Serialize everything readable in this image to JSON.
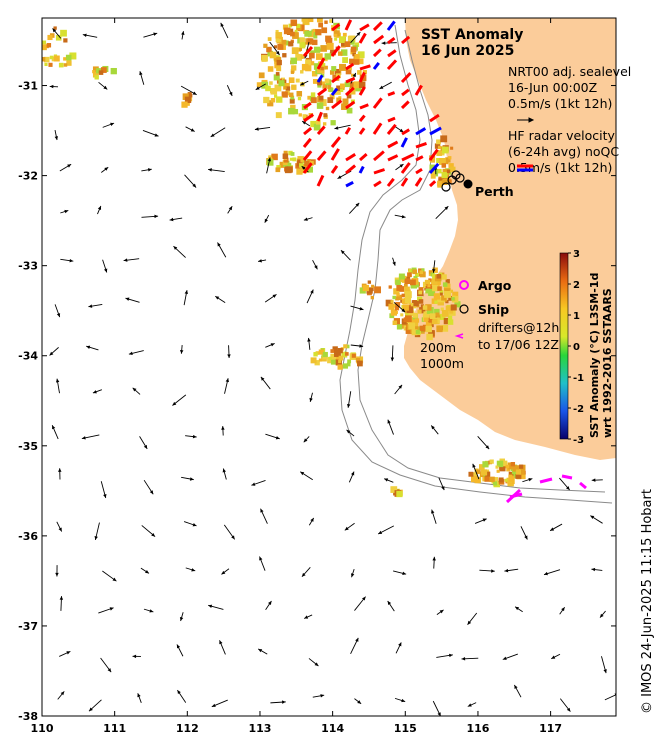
{
  "map": {
    "title_line1": "SST Anomaly",
    "title_line2": "16 Jun 2025",
    "lon_ticks": [
      "110",
      "111",
      "112",
      "113",
      "114",
      "115",
      "116",
      "117"
    ],
    "lat_ticks": [
      "-31",
      "-32",
      "-33",
      "-34",
      "-35",
      "-36",
      "-37",
      "-38"
    ],
    "lon_range": [
      110,
      117.9
    ],
    "lat_range": [
      -38,
      -30.25
    ],
    "city": {
      "name": "Perth",
      "lon": 115.85,
      "lat": -31.95
    },
    "sealevel_legend": {
      "line1": "NRT00 adj. sealevel",
      "line2": "16-Jun 00:00Z",
      "line3": "0.5m/s (1kt 12h)"
    },
    "radar_legend": {
      "line1": "HF radar velocity",
      "line2": "(6-24h avg) noQC",
      "line3": "0.5m/s (1kt 12h)"
    },
    "symbols": {
      "argo": "Argo",
      "ship": "Ship",
      "drifters_line1": "drifters@12h",
      "drifters_line2": "to 17/06 12Z"
    },
    "contours": {
      "c200": "200m",
      "c1000": "1000m"
    },
    "colorbar": {
      "ticks": [
        "3",
        "2",
        "1",
        "0",
        "-1",
        "-2",
        "-3"
      ],
      "label_line1": "SST Anomaly (°C) L3SM-1d",
      "label_line2": "wrt 1992-2016 SSTAARS",
      "range": [
        -3,
        3
      ]
    },
    "credit": "© IMOS 24-Jun-2025 11:15 Hobart",
    "colors": {
      "land": "#fbcc9a",
      "radar_primary": "#ff0000",
      "radar_secondary": "#0000ff",
      "argo": "#ff00ff",
      "drifter": "#ff00ff"
    }
  }
}
